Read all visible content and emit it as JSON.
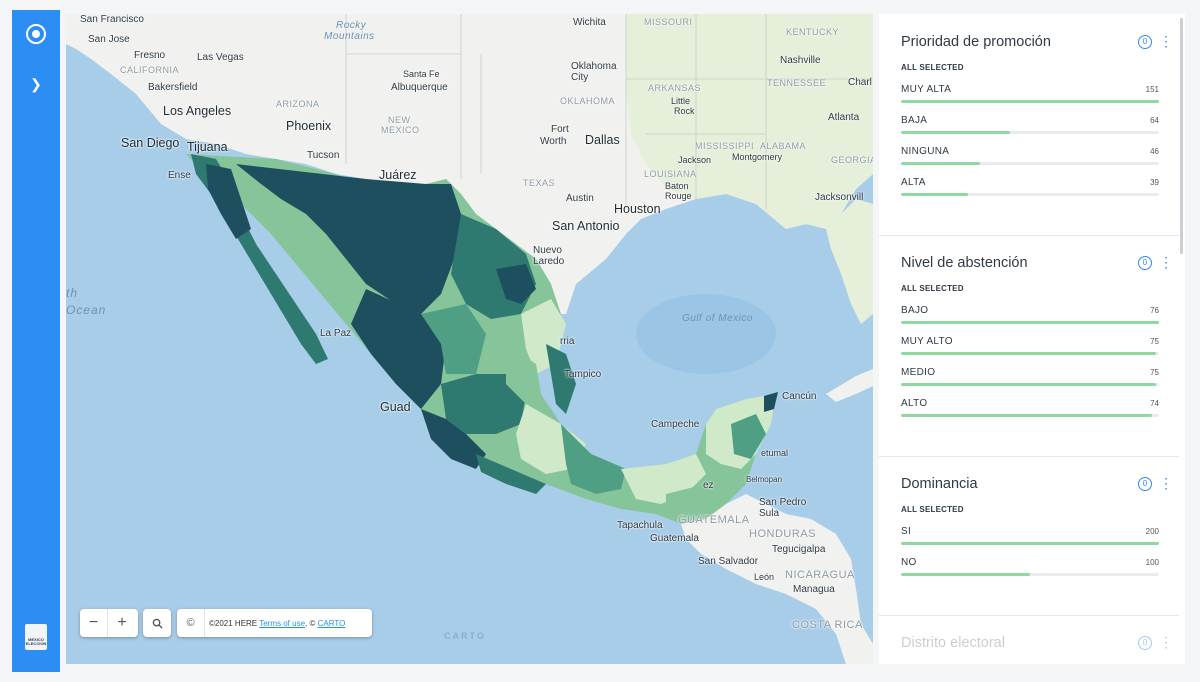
{
  "rail": {
    "logo_text": "MEXICO ELECCION"
  },
  "map": {
    "labels": {
      "san_francisco": "San Francisco",
      "san_jose": "San Jose",
      "fresno": "Fresno",
      "california": "CALIFORNIA",
      "las_vegas": "Las Vegas",
      "bakersfield": "Bakersfield",
      "los_angeles": "Los Angeles",
      "san_diego": "San Diego",
      "tijuana": "Tijuana",
      "ensenada": "Ense",
      "arizona": "ARIZONA",
      "phoenix": "Phoenix",
      "tucson": "Tucson",
      "rocky": "Rocky",
      "mountains": "Mountains",
      "santa_fe": "Santa Fe",
      "albuquerque": "Albuquerque",
      "new_mexico_1": "NEW",
      "new_mexico_2": "MEXICO",
      "juarez": "Juárez",
      "wichita": "Wichita",
      "missouri": "MISSOURI",
      "oklahoma_city_1": "Oklahoma",
      "oklahoma_city_2": "City",
      "oklahoma": "OKLAHOMA",
      "arkansas": "ARKANSAS",
      "little_rock_1": "Little",
      "little_rock_2": "Rock",
      "kentucky": "KENTUCKY",
      "nashville": "Nashville",
      "tennessee": "TENNESSEE",
      "charlotte": "Charl",
      "atlanta": "Atlanta",
      "georgia": "GEORGIA",
      "mississippi": "MISSISSIPPI",
      "alabama": "ALABAMA",
      "jackson": "Jackson",
      "montgomery": "Montgomery",
      "louisiana": "LOUISIANA",
      "baton_rouge_1": "Baton",
      "baton_rouge_2": "Rouge",
      "jacksonville": "Jacksonvill",
      "fort_worth_1": "Fort",
      "fort_worth_2": "Worth",
      "dallas": "Dallas",
      "texas": "TEXAS",
      "austin": "Austin",
      "houston": "Houston",
      "san_antonio": "San Antonio",
      "nuevo_laredo_1": "Nuevo",
      "nuevo_laredo_2": "Laredo",
      "monterrey": "rria",
      "la_paz": "La Paz",
      "guadalajara": "Guad",
      "tampico": "Tampico",
      "gulf": "Gulf of Mexico",
      "pacific_1": "th",
      "pacific_2": "Ocean",
      "cancun": "Cancún",
      "campeche": "Campeche",
      "chetumal": "etumal",
      "belmopan": "Belmopan",
      "san_pedro_sula_1": "San Pedro",
      "san_pedro_sula_2": "Sula",
      "tapachula": "Tapachula",
      "guatemala_country": "GUATEMALA",
      "guatemala_city": "Guatemala",
      "honduras": "HONDURAS",
      "tegucigalpa": "Tegucigalpa",
      "san_salvador": "San Salvador",
      "leon": "León",
      "nicaragua": "NICARAGUA",
      "managua": "Managua",
      "costa_rica": "COSTA RICA",
      "belize": "ez"
    },
    "controls": {
      "zoom_out": "−",
      "zoom_in": "+",
      "search_icon": "search-icon",
      "attribution_icon": "©",
      "attribution_text": "©2021 HERE",
      "terms_link": "Terms of use",
      "sep": ", ©",
      "carto_link": "CARTO"
    },
    "watermark": "CARTO",
    "colors": {
      "water": "#a8cde8",
      "land": "#f1f2ef",
      "darkest": "#1e4f5e",
      "dark": "#2e7a70",
      "mid": "#4f9f84",
      "light": "#86c59a",
      "lightest": "#cfe9c9"
    }
  },
  "panel": {
    "widgets": [
      {
        "title": "Prioridad de promoción",
        "count_badge": "0",
        "selected_label": "ALL SELECTED",
        "max": 151,
        "categories": [
          {
            "name": "MUY ALTA",
            "value": 151
          },
          {
            "name": "BAJA",
            "value": 64
          },
          {
            "name": "NINGUNA",
            "value": 46
          },
          {
            "name": "ALTA",
            "value": 39
          }
        ]
      },
      {
        "title": "Nivel de abstención",
        "count_badge": "0",
        "selected_label": "ALL SELECTED",
        "max": 76,
        "categories": [
          {
            "name": "BAJO",
            "value": 76
          },
          {
            "name": "MUY ALTO",
            "value": 75
          },
          {
            "name": "MEDIO",
            "value": 75
          },
          {
            "name": "ALTO",
            "value": 74
          }
        ]
      },
      {
        "title": "Dominancia",
        "count_badge": "0",
        "selected_label": "ALL SELECTED",
        "max": 200,
        "categories": [
          {
            "name": "SI",
            "value": 200
          },
          {
            "name": "NO",
            "value": 100
          }
        ]
      },
      {
        "title": "Distrito electoral",
        "count_badge": "0"
      }
    ],
    "bar_color": "#8fd8a0",
    "accent": "#2c8df5"
  }
}
